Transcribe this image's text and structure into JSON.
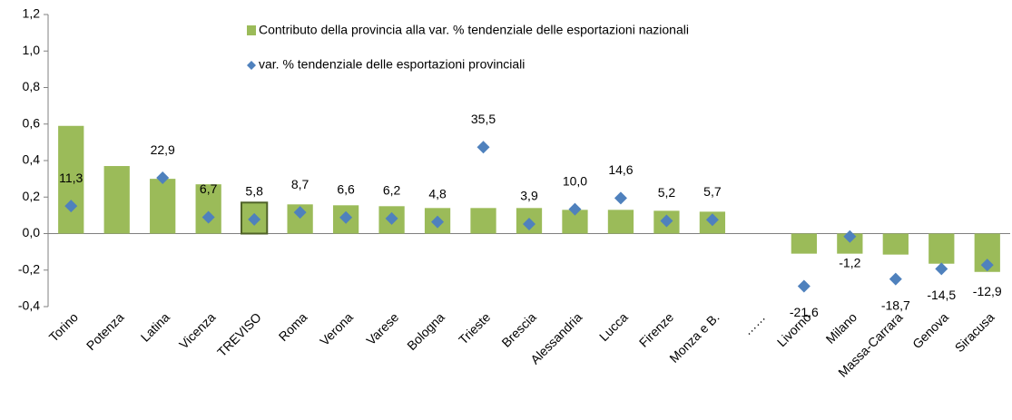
{
  "chart_data": {
    "type": "bar",
    "categories": [
      "Torino",
      "Potenza",
      "Latina",
      "Vicenza",
      "TREVISO",
      "Roma",
      "Verona",
      "Varese",
      "Bologna",
      "Trieste",
      "Brescia",
      "Alessandria",
      "Lucca",
      "Firenze",
      "Monza e B.",
      "……",
      "Livorno",
      "Milano",
      "Massa-Carrara",
      "Genova",
      "Siracusa"
    ],
    "series": [
      {
        "name": "Contributo della provincia alla var. % tendenziale delle esportazioni nazionali",
        "type": "bar",
        "color": "#9bbb59",
        "values": [
          0.59,
          0.37,
          0.3,
          0.27,
          0.17,
          0.16,
          0.155,
          0.15,
          0.14,
          0.14,
          0.14,
          0.13,
          0.13,
          0.125,
          0.12,
          null,
          -0.11,
          -0.11,
          -0.115,
          -0.165,
          -0.21
        ]
      },
      {
        "name": "var. % tendenziale delle esportazioni provinciali",
        "type": "scatter",
        "axis": "y2",
        "color": "#4f81bd",
        "values": [
          11.3,
          null,
          22.9,
          6.7,
          5.8,
          8.7,
          6.6,
          6.2,
          4.8,
          35.5,
          3.9,
          10.0,
          14.6,
          5.2,
          5.7,
          null,
          -21.6,
          -1.2,
          -18.7,
          -14.5,
          -12.9
        ],
        "value_labels": [
          "11,3",
          null,
          "22,9",
          "6,7",
          "5,8",
          "8,7",
          "6,6",
          "6,2",
          "4,8",
          "35,5",
          "3,9",
          "10,0",
          "14,6",
          "5,2",
          "5,7",
          null,
          "-21,6",
          "-1,2",
          "-18,7",
          "-14,5",
          "-12,9"
        ],
        "negative_label_color": "#ff0000"
      }
    ],
    "highlight": 4,
    "highlight_color": "#4f6228",
    "ylim": [
      -0.4,
      1.2
    ],
    "yticks": [
      {
        "value": -0.4,
        "label": "-0,4"
      },
      {
        "value": -0.2,
        "label": "-0,2"
      },
      {
        "value": 0,
        "label": "0,0"
      },
      {
        "value": 0.2,
        "label": "0,2"
      },
      {
        "value": 0.4,
        "label": "0,4"
      },
      {
        "value": 0.6,
        "label": "0,6"
      },
      {
        "value": 0.8,
        "label": "0,8"
      },
      {
        "value": 1.0,
        "label": "1,0"
      },
      {
        "value": 1.2,
        "label": "1,2"
      }
    ],
    "y2lim": [
      -30,
      90
    ],
    "grid": false,
    "legend": "top"
  }
}
